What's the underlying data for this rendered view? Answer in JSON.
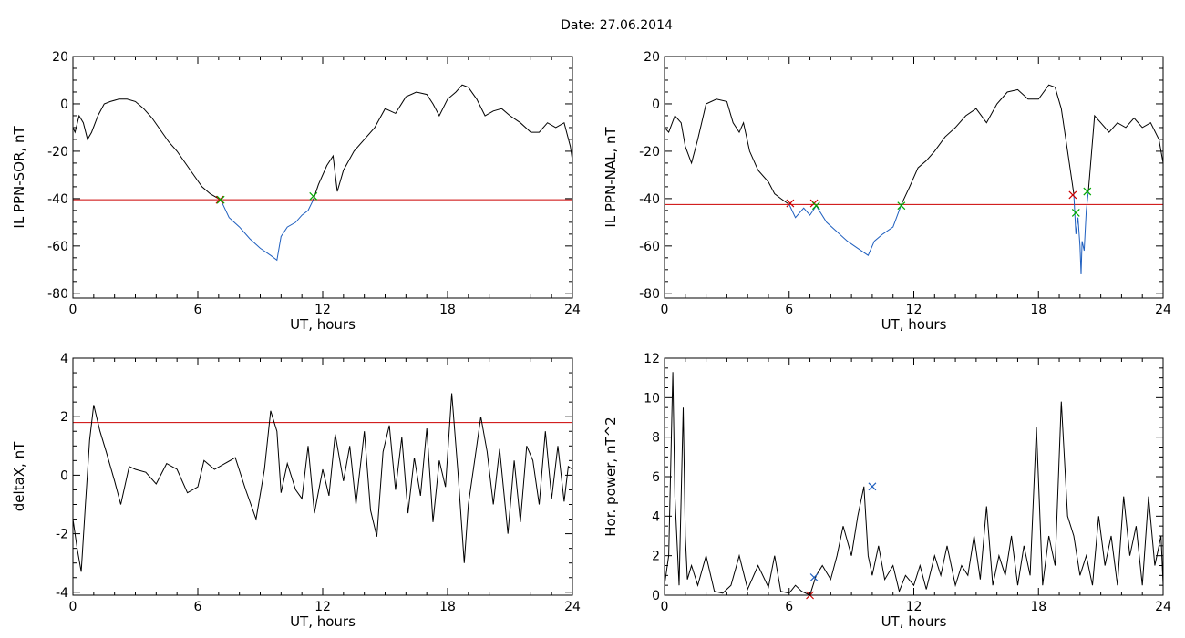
{
  "figure": {
    "title": "Date:  27.06.2014"
  },
  "chart_data": [
    {
      "type": "line",
      "title": "",
      "xlabel": "UT, hours",
      "ylabel": "IL PPN-SOR, nT",
      "xlim": [
        0,
        24
      ],
      "ylim": [
        -82,
        20
      ],
      "xticks": [
        0,
        6,
        12,
        18,
        24
      ],
      "yticks": [
        -80,
        -60,
        -40,
        -20,
        0,
        20
      ],
      "threshold": -40.5,
      "series": [
        {
          "color": "#000000",
          "x": [
            0,
            0.1,
            0.3,
            0.5,
            0.7,
            0.9,
            1.2,
            1.5,
            1.8,
            2.2,
            2.6,
            3.0,
            3.4,
            3.8,
            4.2,
            4.6,
            5.0,
            5.4,
            5.8,
            6.2,
            6.6,
            7.0,
            7.1
          ],
          "values": [
            -10,
            -12,
            -5,
            -8,
            -15,
            -12,
            -5,
            0,
            1,
            2,
            2,
            1,
            -2,
            -6,
            -11,
            -16,
            -20,
            -25,
            -30,
            -35,
            -38,
            -40,
            -40.5
          ]
        },
        {
          "color": "#1f5fbf",
          "x": [
            7.1,
            7.5,
            8.0,
            8.5,
            9.0,
            9.5,
            9.8,
            10.0,
            10.3,
            10.7,
            11.0,
            11.3,
            11.55
          ],
          "values": [
            -40.5,
            -48,
            -52,
            -57,
            -61,
            -64,
            -66,
            -56,
            -52,
            -50,
            -47,
            -45,
            -40.5
          ]
        },
        {
          "color": "#000000",
          "x": [
            11.55,
            11.8,
            12.2,
            12.5,
            12.7,
            13.0,
            13.5,
            14.0,
            14.5,
            15.0,
            15.5,
            16.0,
            16.5,
            17.0,
            17.3,
            17.6,
            18.0,
            18.4,
            18.7,
            19.0,
            19.4,
            19.8,
            20.2,
            20.6,
            21.0,
            21.5,
            22.0,
            22.4,
            22.8,
            23.2,
            23.6,
            23.9,
            24
          ],
          "values": [
            -40.5,
            -34,
            -26,
            -22,
            -37,
            -28,
            -20,
            -15,
            -10,
            -2,
            -4,
            3,
            5,
            4,
            0,
            -5,
            2,
            5,
            8,
            7,
            2,
            -5,
            -3,
            -2,
            -5,
            -8,
            -12,
            -12,
            -8,
            -10,
            -8,
            -18,
            -24
          ]
        }
      ],
      "markers": [
        {
          "x": 7.05,
          "y": -40.5,
          "shape": "x",
          "color": "#cc0000"
        },
        {
          "x": 7.1,
          "y": -40.5,
          "shape": "x",
          "color": "#00aa00"
        },
        {
          "x": 11.55,
          "y": -39,
          "shape": "x",
          "color": "#00aa00"
        }
      ]
    },
    {
      "type": "line",
      "title": "",
      "xlabel": "UT, hours",
      "ylabel": "IL PPN-NAL, nT",
      "xlim": [
        0,
        24
      ],
      "ylim": [
        -82,
        20
      ],
      "xticks": [
        0,
        6,
        12,
        18,
        24
      ],
      "yticks": [
        -80,
        -60,
        -40,
        -20,
        0,
        20
      ],
      "threshold": -42.5,
      "series": [
        {
          "color": "#000000",
          "x": [
            0,
            0.2,
            0.5,
            0.8,
            1.0,
            1.3,
            1.6,
            2.0,
            2.5,
            3.0,
            3.3,
            3.6,
            3.8,
            4.1,
            4.5,
            5.0,
            5.3,
            5.6,
            6.0
          ],
          "values": [
            -10,
            -12,
            -5,
            -8,
            -18,
            -25,
            -15,
            0,
            2,
            1,
            -8,
            -12,
            -8,
            -20,
            -28,
            -33,
            -38,
            -40,
            -42.5
          ]
        },
        {
          "color": "#1f5fbf",
          "x": [
            6.0,
            6.3,
            6.7,
            7.0,
            7.3,
            7.8,
            8.3,
            8.8,
            9.3,
            9.8,
            10.1,
            10.5,
            11.0,
            11.4
          ],
          "values": [
            -42.5,
            -48,
            -44,
            -47,
            -43,
            -50,
            -54,
            -58,
            -61,
            -64,
            -58,
            -55,
            -52,
            -42.5
          ]
        },
        {
          "color": "#000000",
          "x": [
            11.4,
            11.8,
            12.2,
            12.6,
            13.0,
            13.5,
            14.0,
            14.5,
            15.0,
            15.5,
            16.0,
            16.5,
            17.0,
            17.5,
            18.0,
            18.5,
            18.8,
            19.1,
            19.4,
            19.7
          ],
          "values": [
            -42.5,
            -35,
            -27,
            -24,
            -20,
            -14,
            -10,
            -5,
            -2,
            -8,
            0,
            5,
            6,
            2,
            2,
            8,
            7,
            -2,
            -20,
            -38
          ]
        },
        {
          "color": "#1f5fbf",
          "x": [
            19.7,
            19.8,
            19.9,
            20.0,
            20.05,
            20.1,
            20.2,
            20.3,
            20.4
          ],
          "values": [
            -38,
            -55,
            -48,
            -60,
            -72,
            -58,
            -62,
            -45,
            -37
          ]
        },
        {
          "color": "#000000",
          "x": [
            20.4,
            20.7,
            21.0,
            21.4,
            21.8,
            22.2,
            22.6,
            23.0,
            23.4,
            23.8,
            24
          ],
          "values": [
            -37,
            -5,
            -8,
            -12,
            -8,
            -10,
            -6,
            -10,
            -8,
            -15,
            -25
          ]
        }
      ],
      "markers": [
        {
          "x": 6.05,
          "y": -42,
          "shape": "x",
          "color": "#cc0000"
        },
        {
          "x": 7.2,
          "y": -42,
          "shape": "x",
          "color": "#cc0000"
        },
        {
          "x": 7.3,
          "y": -43,
          "shape": "x",
          "color": "#00aa00"
        },
        {
          "x": 11.4,
          "y": -43,
          "shape": "x",
          "color": "#00aa00"
        },
        {
          "x": 19.65,
          "y": -38.5,
          "shape": "x",
          "color": "#cc0000"
        },
        {
          "x": 19.8,
          "y": -46,
          "shape": "x",
          "color": "#00aa00"
        },
        {
          "x": 20.35,
          "y": -37,
          "shape": "x",
          "color": "#00aa00"
        }
      ]
    },
    {
      "type": "line",
      "title": "",
      "xlabel": "UT, hours",
      "ylabel": "deltaX, nT",
      "xlim": [
        0,
        24
      ],
      "ylim": [
        -4.1,
        4
      ],
      "xticks": [
        0,
        6,
        12,
        18,
        24
      ],
      "yticks": [
        -4,
        -2,
        0,
        2,
        4
      ],
      "threshold": 1.8,
      "series": [
        {
          "color": "#000000",
          "x": [
            0,
            0.2,
            0.4,
            0.6,
            0.8,
            1.0,
            1.3,
            1.6,
            2.0,
            2.3,
            2.7,
            3.0,
            3.5,
            4.0,
            4.5,
            5.0,
            5.5,
            6.0,
            6.3,
            6.8,
            7.3,
            7.8,
            8.3,
            8.8,
            9.2,
            9.5,
            9.8,
            10.0,
            10.3,
            10.7,
            11.0,
            11.3,
            11.6,
            12.0,
            12.3,
            12.6,
            13.0,
            13.3,
            13.6,
            14.0,
            14.3,
            14.6,
            14.9,
            15.2,
            15.5,
            15.8,
            16.1,
            16.4,
            16.7,
            17.0,
            17.3,
            17.6,
            17.9,
            18.2,
            18.5,
            18.8,
            19.0,
            19.3,
            19.6,
            19.9,
            20.2,
            20.5,
            20.9,
            21.2,
            21.5,
            21.8,
            22.1,
            22.4,
            22.7,
            23.0,
            23.3,
            23.6,
            23.8,
            24
          ],
          "values": [
            -1.5,
            -2.5,
            -3.3,
            -1.0,
            1.2,
            2.4,
            1.5,
            0.8,
            -0.2,
            -1.0,
            0.3,
            0.2,
            0.1,
            -0.3,
            0.4,
            0.2,
            -0.6,
            -0.4,
            0.5,
            0.2,
            0.4,
            0.6,
            -0.5,
            -1.5,
            0.2,
            2.2,
            1.5,
            -0.6,
            0.4,
            -0.5,
            -0.8,
            1.0,
            -1.3,
            0.2,
            -0.7,
            1.4,
            -0.2,
            1.0,
            -1.0,
            1.5,
            -1.2,
            -2.1,
            0.8,
            1.7,
            -0.5,
            1.3,
            -1.3,
            0.6,
            -0.7,
            1.6,
            -1.6,
            0.5,
            -0.4,
            2.8,
            0.1,
            -3.0,
            -1.0,
            0.5,
            2.0,
            0.8,
            -1.0,
            0.9,
            -2.0,
            0.5,
            -1.6,
            1.0,
            0.5,
            -1.0,
            1.5,
            -0.8,
            1.0,
            -0.9,
            0.3,
            0.2
          ]
        }
      ],
      "markers": []
    },
    {
      "type": "line",
      "title": "",
      "xlabel": "UT, hours",
      "ylabel": "Hor. power, nT^2",
      "xlim": [
        0,
        24
      ],
      "ylim": [
        0,
        12
      ],
      "xticks": [
        0,
        6,
        12,
        18,
        24
      ],
      "yticks": [
        0,
        2,
        4,
        6,
        8,
        10,
        12
      ],
      "threshold": null,
      "series": [
        {
          "color": "#000000",
          "x": [
            0,
            0.2,
            0.4,
            0.5,
            0.7,
            0.9,
            1.0,
            1.1,
            1.3,
            1.6,
            2.0,
            2.4,
            2.8,
            3.2,
            3.6,
            4.0,
            4.5,
            5.0,
            5.3,
            5.6,
            6.0,
            6.3,
            6.6,
            7.0,
            7.3,
            7.6,
            8.0,
            8.3,
            8.6,
            9.0,
            9.3,
            9.6,
            9.8,
            10.0,
            10.3,
            10.6,
            11.0,
            11.3,
            11.6,
            12.0,
            12.3,
            12.6,
            13.0,
            13.3,
            13.6,
            14.0,
            14.3,
            14.6,
            14.9,
            15.2,
            15.5,
            15.8,
            16.1,
            16.4,
            16.7,
            17.0,
            17.3,
            17.6,
            17.9,
            18.2,
            18.5,
            18.8,
            19.1,
            19.4,
            19.7,
            20.0,
            20.3,
            20.6,
            20.9,
            21.2,
            21.5,
            21.8,
            22.1,
            22.4,
            22.7,
            23.0,
            23.3,
            23.6,
            23.9,
            24
          ],
          "values": [
            0.5,
            2.0,
            11.3,
            5.0,
            0.5,
            9.5,
            3.0,
            0.8,
            1.5,
            0.5,
            2.0,
            0.2,
            0.1,
            0.5,
            2.0,
            0.3,
            1.5,
            0.4,
            2.0,
            0.2,
            0.1,
            0.5,
            0.2,
            0.0,
            1.0,
            1.5,
            0.8,
            2.0,
            3.5,
            2.0,
            4.0,
            5.5,
            2.0,
            1.0,
            2.5,
            0.8,
            1.5,
            0.2,
            1.0,
            0.5,
            1.5,
            0.3,
            2.0,
            1.0,
            2.5,
            0.5,
            1.5,
            1.0,
            3.0,
            0.8,
            4.5,
            0.5,
            2.0,
            1.0,
            3.0,
            0.5,
            2.5,
            1.0,
            8.5,
            0.5,
            3.0,
            1.5,
            9.8,
            4.0,
            3.0,
            1.0,
            2.0,
            0.5,
            4.0,
            1.5,
            3.0,
            0.5,
            5.0,
            2.0,
            3.5,
            0.5,
            5.0,
            1.5,
            3.0,
            0.5
          ]
        }
      ],
      "markers": [
        {
          "x": 7.2,
          "y": 0.9,
          "shape": "x",
          "color": "#1f5fbf"
        },
        {
          "x": 7.0,
          "y": 0.0,
          "shape": "x",
          "color": "#cc0000"
        },
        {
          "x": 10.0,
          "y": 5.5,
          "shape": "x",
          "color": "#1f5fbf"
        }
      ]
    }
  ]
}
